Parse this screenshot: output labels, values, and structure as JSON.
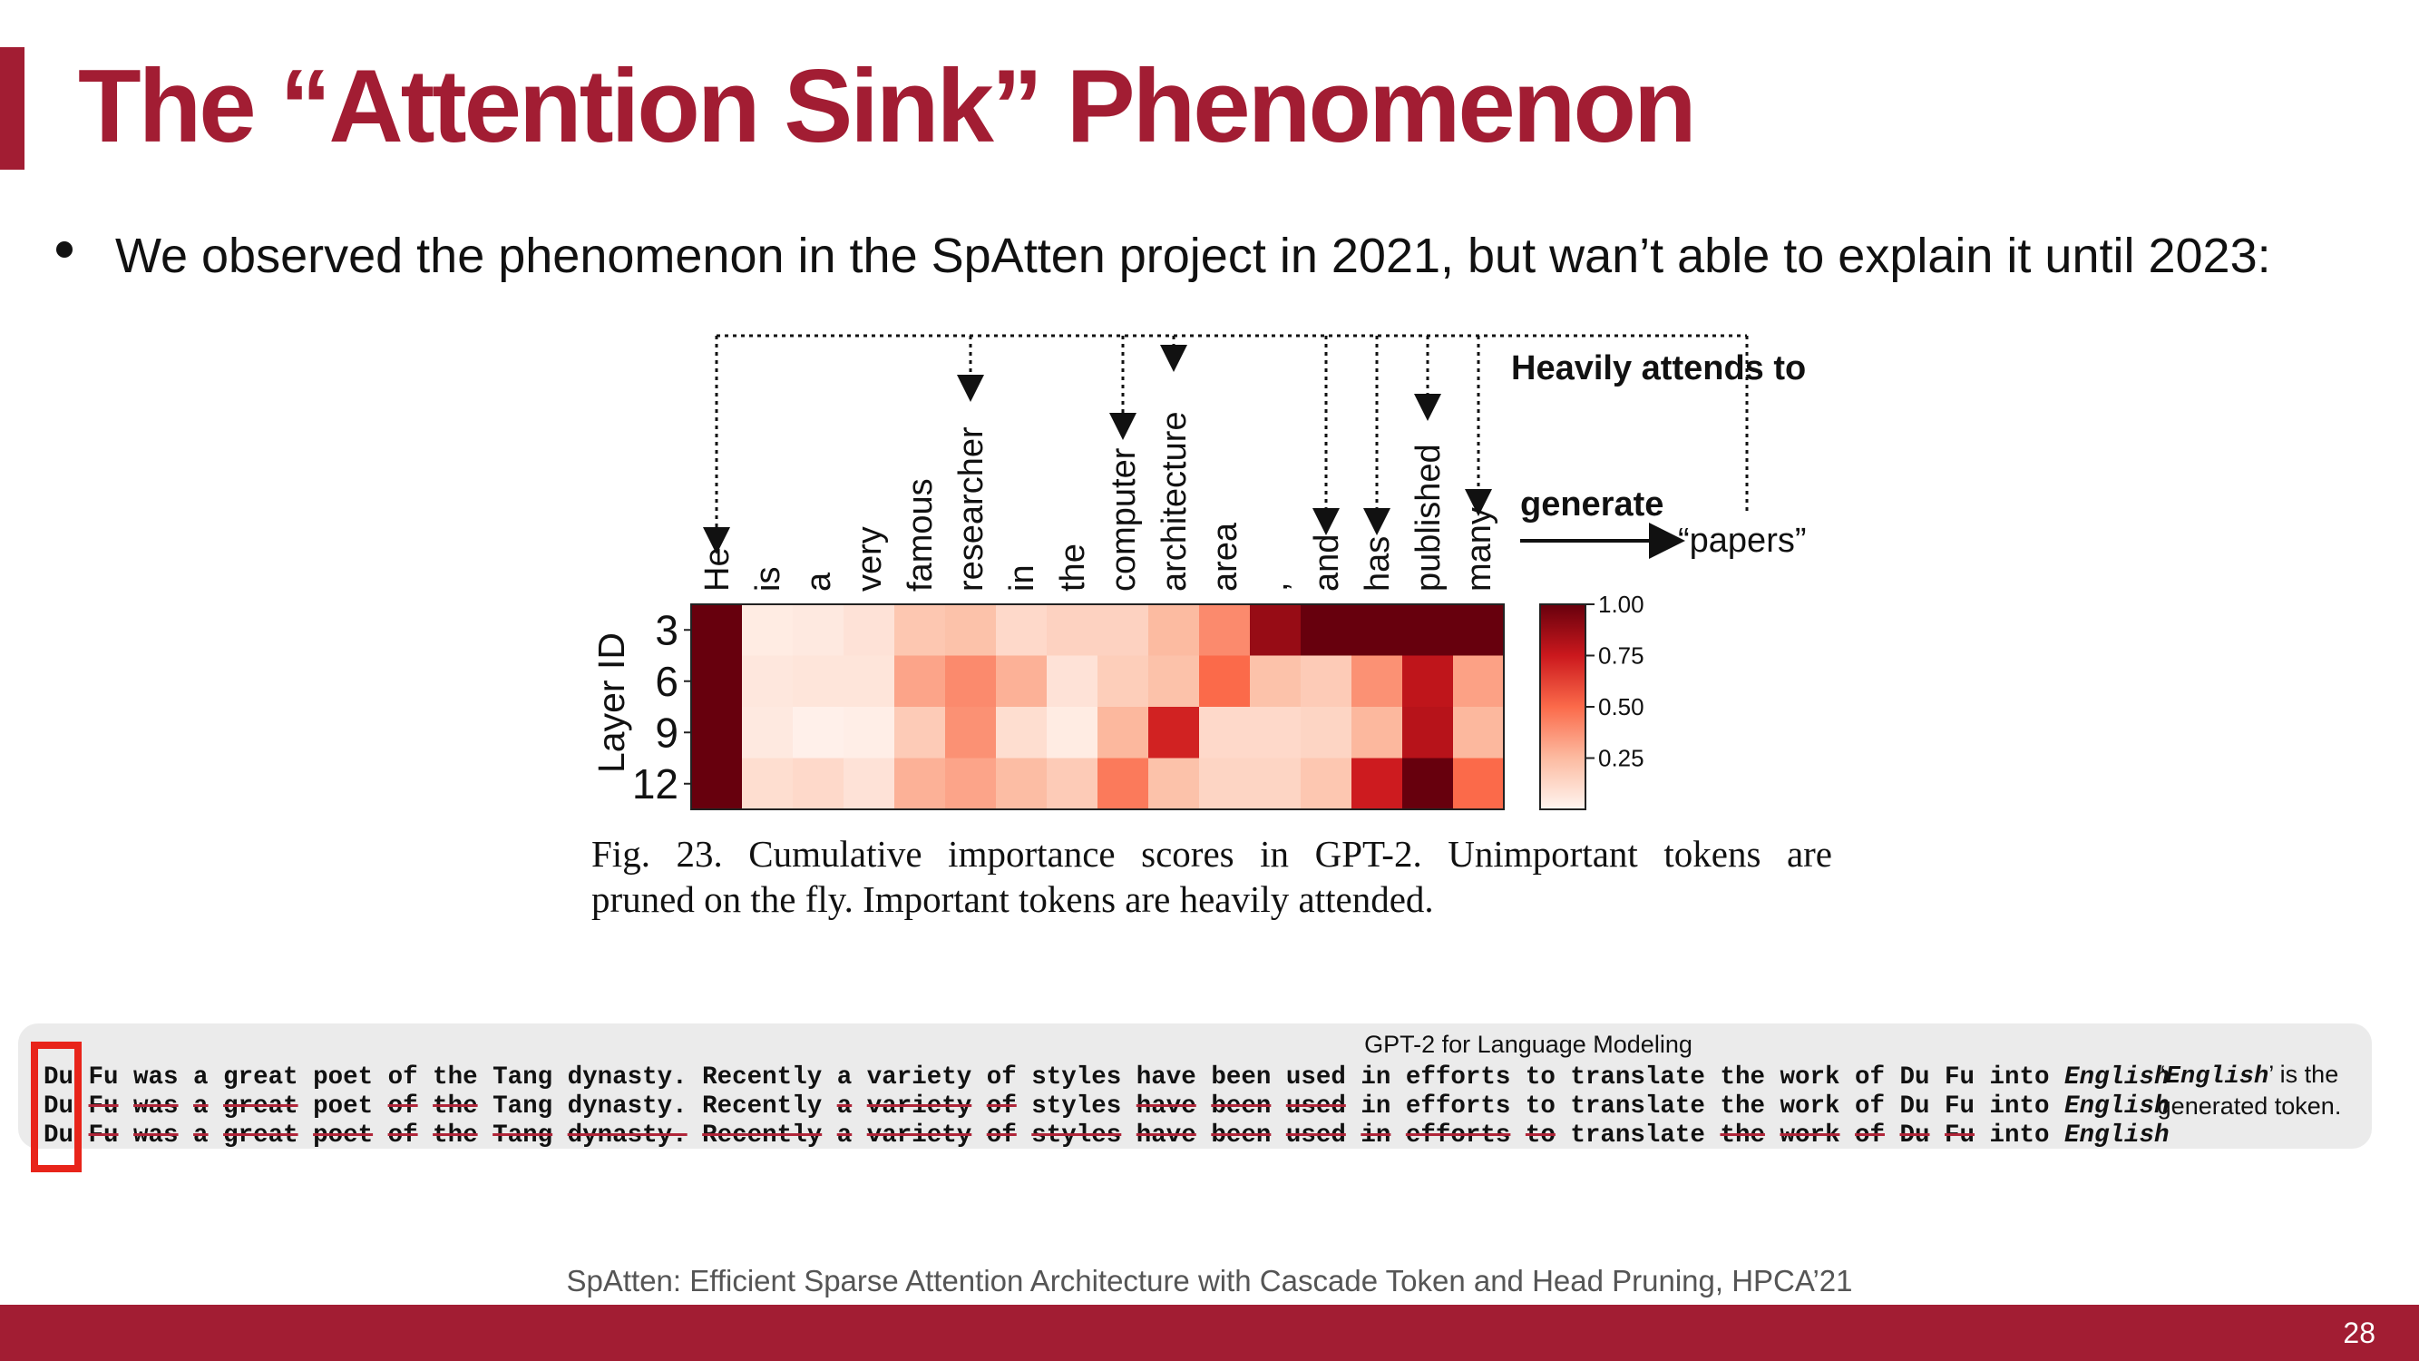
{
  "slide": {
    "title": "The “Attention Sink” Phenomenon",
    "bullet": "We observed the phenomenon in the SpAtten project in 2021, but wan’t able to explain it until 2023:",
    "reference": "SpAtten: Efficient Sparse Attention Architecture with Cascade Token and Head Pruning, HPCA’21",
    "page_number": "28"
  },
  "figure": {
    "annotation": "Heavily attends to",
    "generate_label": "generate",
    "generated_word": "“papers”",
    "caption_lines": [
      "Fig. 23.  Cumulative importance scores in GPT-2. Unimportant tokens are",
      "pruned on the fly. Important tokens are heavily attended."
    ]
  },
  "chart_data": {
    "type": "heatmap",
    "x_tokens": [
      "He",
      "is",
      "a",
      "very",
      "famous",
      "researcher",
      "in",
      "the",
      "computer",
      "architecture",
      "area",
      ",",
      "and",
      "has",
      "published",
      "many"
    ],
    "y_label": "Layer ID",
    "y_rows": [
      "3",
      "6",
      "9",
      "12"
    ],
    "values": [
      [
        1.0,
        0.04,
        0.05,
        0.08,
        0.2,
        0.22,
        0.12,
        0.15,
        0.15,
        0.25,
        0.4,
        0.88,
        1.0,
        1.0,
        1.0,
        1.0
      ],
      [
        1.0,
        0.06,
        0.07,
        0.07,
        0.32,
        0.4,
        0.28,
        0.08,
        0.17,
        0.22,
        0.5,
        0.22,
        0.18,
        0.38,
        0.78,
        0.33
      ],
      [
        1.0,
        0.05,
        0.02,
        0.03,
        0.18,
        0.38,
        0.1,
        0.04,
        0.26,
        0.72,
        0.12,
        0.12,
        0.14,
        0.26,
        0.8,
        0.26
      ],
      [
        1.0,
        0.1,
        0.12,
        0.08,
        0.28,
        0.32,
        0.24,
        0.18,
        0.45,
        0.22,
        0.14,
        0.14,
        0.2,
        0.74,
        1.0,
        0.5
      ]
    ],
    "heavily_attended_tokens": [
      "He",
      "researcher",
      "computer",
      "architecture",
      "and",
      "has",
      "published",
      "many"
    ],
    "colorbar": {
      "ticks": [
        "1.00",
        "0.75",
        "0.50",
        "0.25"
      ],
      "range": [
        0,
        1
      ],
      "colormap": "Reds"
    }
  },
  "gpt_panel": {
    "title": "GPT-2 for Language Modeling",
    "rows": [
      [
        {
          "t": "Du"
        },
        {
          "t": "Fu"
        },
        {
          "t": "was"
        },
        {
          "t": "a"
        },
        {
          "t": "great"
        },
        {
          "t": "poet"
        },
        {
          "t": "of"
        },
        {
          "t": "the"
        },
        {
          "t": "Tang"
        },
        {
          "t": "dynasty."
        },
        {
          "t": "Recently"
        },
        {
          "t": "a"
        },
        {
          "t": "variety"
        },
        {
          "t": "of"
        },
        {
          "t": "styles"
        },
        {
          "t": "have"
        },
        {
          "t": "been"
        },
        {
          "t": "used"
        },
        {
          "t": "in"
        },
        {
          "t": "efforts"
        },
        {
          "t": "to"
        },
        {
          "t": "translate"
        },
        {
          "t": "the"
        },
        {
          "t": "work"
        },
        {
          "t": "of"
        },
        {
          "t": "Du"
        },
        {
          "t": "Fu"
        },
        {
          "t": "into"
        },
        {
          "t": "English",
          "it": true
        }
      ],
      [
        {
          "t": "Du"
        },
        {
          "t": "Fu",
          "s": true
        },
        {
          "t": "was",
          "s": true
        },
        {
          "t": "a",
          "s": true
        },
        {
          "t": "great",
          "s": true
        },
        {
          "t": "poet"
        },
        {
          "t": "of",
          "s": true
        },
        {
          "t": "the",
          "s": true
        },
        {
          "t": "Tang"
        },
        {
          "t": "dynasty."
        },
        {
          "t": "Recently"
        },
        {
          "t": "a",
          "s": true
        },
        {
          "t": "variety",
          "s": true
        },
        {
          "t": "of",
          "s": true
        },
        {
          "t": "styles"
        },
        {
          "t": "have",
          "s": true
        },
        {
          "t": "been",
          "s": true
        },
        {
          "t": "used",
          "s": true
        },
        {
          "t": "in"
        },
        {
          "t": "efforts"
        },
        {
          "t": "to"
        },
        {
          "t": "translate"
        },
        {
          "t": "the"
        },
        {
          "t": "work"
        },
        {
          "t": "of"
        },
        {
          "t": "Du"
        },
        {
          "t": "Fu"
        },
        {
          "t": "into"
        },
        {
          "t": "English",
          "it": true
        }
      ],
      [
        {
          "t": "Du"
        },
        {
          "t": "Fu",
          "s": true
        },
        {
          "t": "was",
          "s": true
        },
        {
          "t": "a",
          "s": true
        },
        {
          "t": "great",
          "s": true
        },
        {
          "t": "poet",
          "s": true
        },
        {
          "t": "of",
          "s": true
        },
        {
          "t": "the",
          "s": true
        },
        {
          "t": "Tang",
          "s": true
        },
        {
          "t": "dynasty.",
          "s": true
        },
        {
          "t": "Recently",
          "s": true
        },
        {
          "t": "a",
          "s": true
        },
        {
          "t": "variety",
          "s": true
        },
        {
          "t": "of",
          "s": true
        },
        {
          "t": "styles",
          "s": true
        },
        {
          "t": "have",
          "s": true
        },
        {
          "t": "been",
          "s": true
        },
        {
          "t": "used",
          "s": true
        },
        {
          "t": "in",
          "s": true
        },
        {
          "t": "efforts",
          "s": true
        },
        {
          "t": "to",
          "s": true
        },
        {
          "t": "translate"
        },
        {
          "t": "the",
          "s": true
        },
        {
          "t": "work",
          "s": true
        },
        {
          "t": "of",
          "s": true
        },
        {
          "t": "Du",
          "s": true
        },
        {
          "t": "Fu",
          "s": true
        },
        {
          "t": "into"
        },
        {
          "t": "English",
          "it": true
        }
      ]
    ],
    "note_word": "English",
    "note_rest": "’ is the",
    "note_line2": "generated token."
  },
  "colors": {
    "accent": "#a21d33",
    "strike": "#b02639",
    "highlight_box": "#e8241a"
  }
}
